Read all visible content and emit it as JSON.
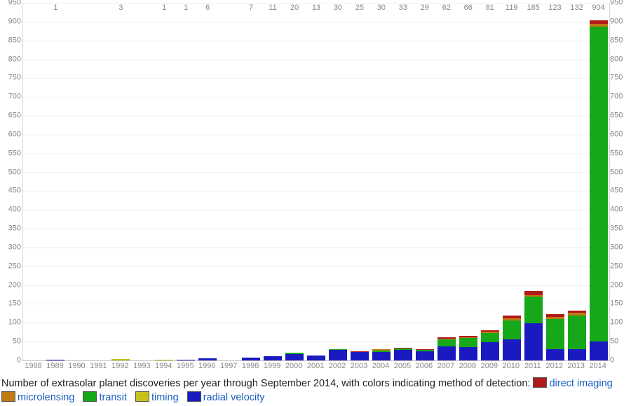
{
  "chart": {
    "type": "stacked-bar",
    "y_max": 950,
    "y_ticks": [
      0,
      50,
      100,
      150,
      200,
      250,
      300,
      350,
      400,
      450,
      500,
      550,
      600,
      650,
      700,
      750,
      800,
      850,
      900,
      950
    ],
    "grid_color": "#eeeeee",
    "axis_label_color": "#888888",
    "axis_fontsize": 11,
    "background_color": "#ffffff",
    "stack_order": [
      "radial_velocity",
      "timing",
      "transit",
      "microlensing",
      "direct_imaging"
    ],
    "series_colors": {
      "direct_imaging": "#b11a1a",
      "microlensing": "#c07a12",
      "transit": "#17a81a",
      "timing": "#c7c21a",
      "radial_velocity": "#1a1ac0"
    },
    "years": [
      "1988",
      "1989",
      "1990",
      "1991",
      "1992",
      "1993",
      "1994",
      "1995",
      "1996",
      "1997",
      "1998",
      "1999",
      "2000",
      "2001",
      "2002",
      "2003",
      "2004",
      "2005",
      "2006",
      "2007",
      "2008",
      "2009",
      "2010",
      "2011",
      "2012",
      "2013",
      "2014"
    ],
    "totals": [
      "",
      "1",
      "",
      "",
      "3",
      "",
      "1",
      "1",
      "6",
      "",
      "7",
      "11",
      "20",
      "13",
      "30",
      "25",
      "30",
      "33",
      "29",
      "62",
      "66",
      "81",
      "119",
      "185",
      "123",
      "132",
      "904"
    ],
    "data": {
      "radial_velocity": [
        0,
        1,
        0,
        0,
        0,
        0,
        0,
        1,
        6,
        0,
        7,
        11,
        17,
        13,
        28,
        22,
        22,
        28,
        24,
        38,
        36,
        48,
        56,
        98,
        30,
        30,
        50
      ],
      "timing": [
        0,
        0,
        0,
        0,
        3,
        0,
        1,
        0,
        0,
        0,
        0,
        0,
        0,
        0,
        0,
        0,
        0,
        0,
        0,
        0,
        0,
        0,
        0,
        0,
        0,
        0,
        0
      ],
      "transit": [
        0,
        0,
        0,
        0,
        0,
        0,
        0,
        0,
        0,
        0,
        0,
        0,
        3,
        0,
        2,
        0,
        5,
        3,
        4,
        18,
        24,
        24,
        50,
        72,
        80,
        90,
        836
      ],
      "microlensing": [
        0,
        0,
        0,
        0,
        0,
        0,
        0,
        0,
        0,
        0,
        0,
        0,
        0,
        0,
        0,
        0,
        2,
        1,
        0,
        2,
        2,
        5,
        6,
        4,
        6,
        6,
        8
      ],
      "direct_imaging": [
        0,
        0,
        0,
        0,
        0,
        0,
        0,
        0,
        0,
        0,
        0,
        0,
        0,
        0,
        0,
        3,
        1,
        1,
        1,
        4,
        4,
        4,
        7,
        11,
        7,
        6,
        10
      ]
    }
  },
  "caption_text": "Number of extrasolar planet discoveries per year through September 2014, with colors indicating method of detection:",
  "legend": [
    {
      "key": "direct_imaging",
      "label": "direct imaging"
    },
    {
      "key": "microlensing",
      "label": "microlensing"
    },
    {
      "key": "transit",
      "label": "transit"
    },
    {
      "key": "timing",
      "label": "timing"
    },
    {
      "key": "radial_velocity",
      "label": "radial velocity"
    }
  ]
}
